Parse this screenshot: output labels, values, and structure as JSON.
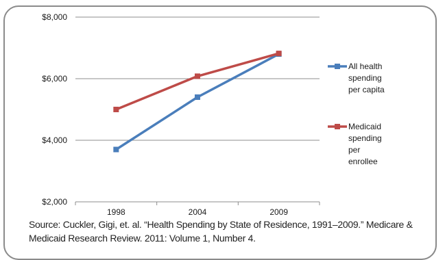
{
  "chart_data": {
    "type": "line",
    "categories": [
      "1998",
      "2004",
      "2009"
    ],
    "series": [
      {
        "name": "All health spending per capita",
        "legend_lines": [
          "All health",
          "spending",
          "per capita"
        ],
        "color": "#4a7ebb",
        "values": [
          3700,
          5400,
          6800
        ]
      },
      {
        "name": "Medicaid spending per enrollee",
        "legend_lines": [
          "Medicaid",
          "spending",
          "per",
          "enrollee"
        ],
        "color": "#be4b48",
        "values": [
          5000,
          6080,
          6820
        ]
      }
    ],
    "yticks": [
      "$2,000",
      "$4,000",
      "$6,000",
      "$8,000"
    ],
    "ytick_values": [
      2000,
      4000,
      6000,
      8000
    ],
    "ylim": [
      2000,
      8000
    ],
    "grid": true,
    "legend_position": "right"
  },
  "source": {
    "line1": "Source: Cuckler, Gigi, et. al. “Health Spending by State of Residence, 1991–2009.” Medicare &",
    "line2": "Medicaid Research Review. 2011: Volume 1, Number 4."
  }
}
